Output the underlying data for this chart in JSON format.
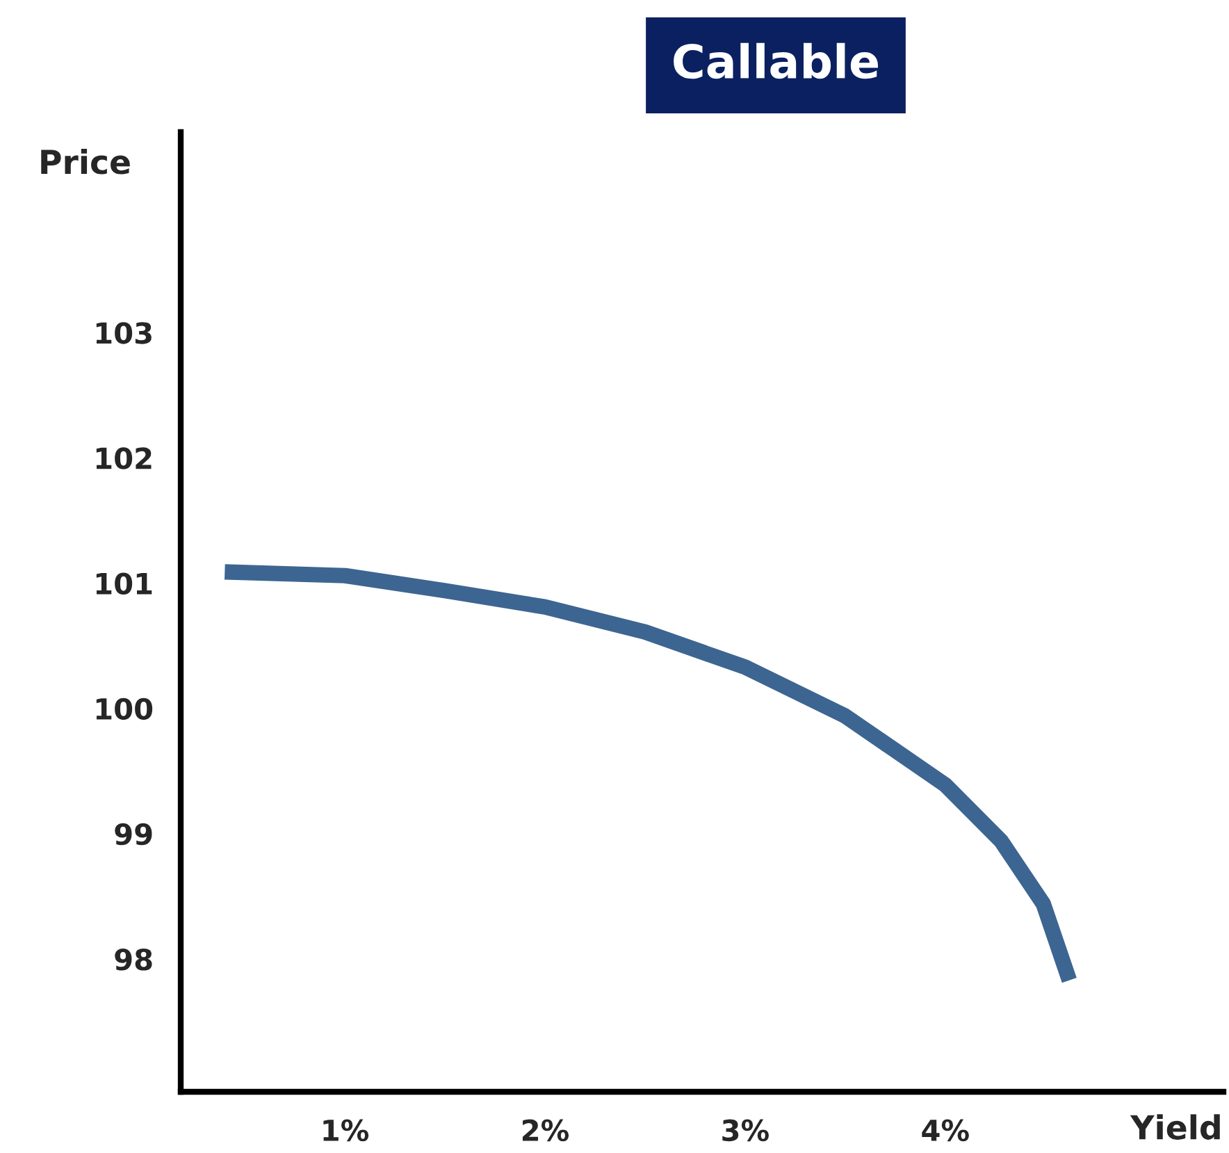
{
  "chart_data": {
    "type": "line",
    "title": "Callable",
    "xlabel": "Yield",
    "ylabel": "Price",
    "x": [
      0.4,
      1.0,
      1.5,
      2.0,
      2.5,
      3.0,
      3.5,
      4.0,
      4.28,
      4.49,
      4.62
    ],
    "series": [
      {
        "color": "#3d6591",
        "values": [
          101.09,
          101.06,
          100.94,
          100.81,
          100.61,
          100.33,
          99.94,
          99.39,
          98.94,
          98.44,
          97.83
        ]
      }
    ],
    "xlim": [
      0.18,
      5.39
    ],
    "ylim": [
      96.94,
      104.6
    ],
    "xticks": [
      {
        "value": 1,
        "label": "1%"
      },
      {
        "value": 2,
        "label": "2%"
      },
      {
        "value": 3,
        "label": "3%"
      },
      {
        "value": 4,
        "label": "4%"
      }
    ],
    "yticks": [
      98,
      99,
      100,
      101,
      102,
      103
    ],
    "grid": false,
    "legend": false,
    "marker": "none",
    "line_style": "solid"
  }
}
